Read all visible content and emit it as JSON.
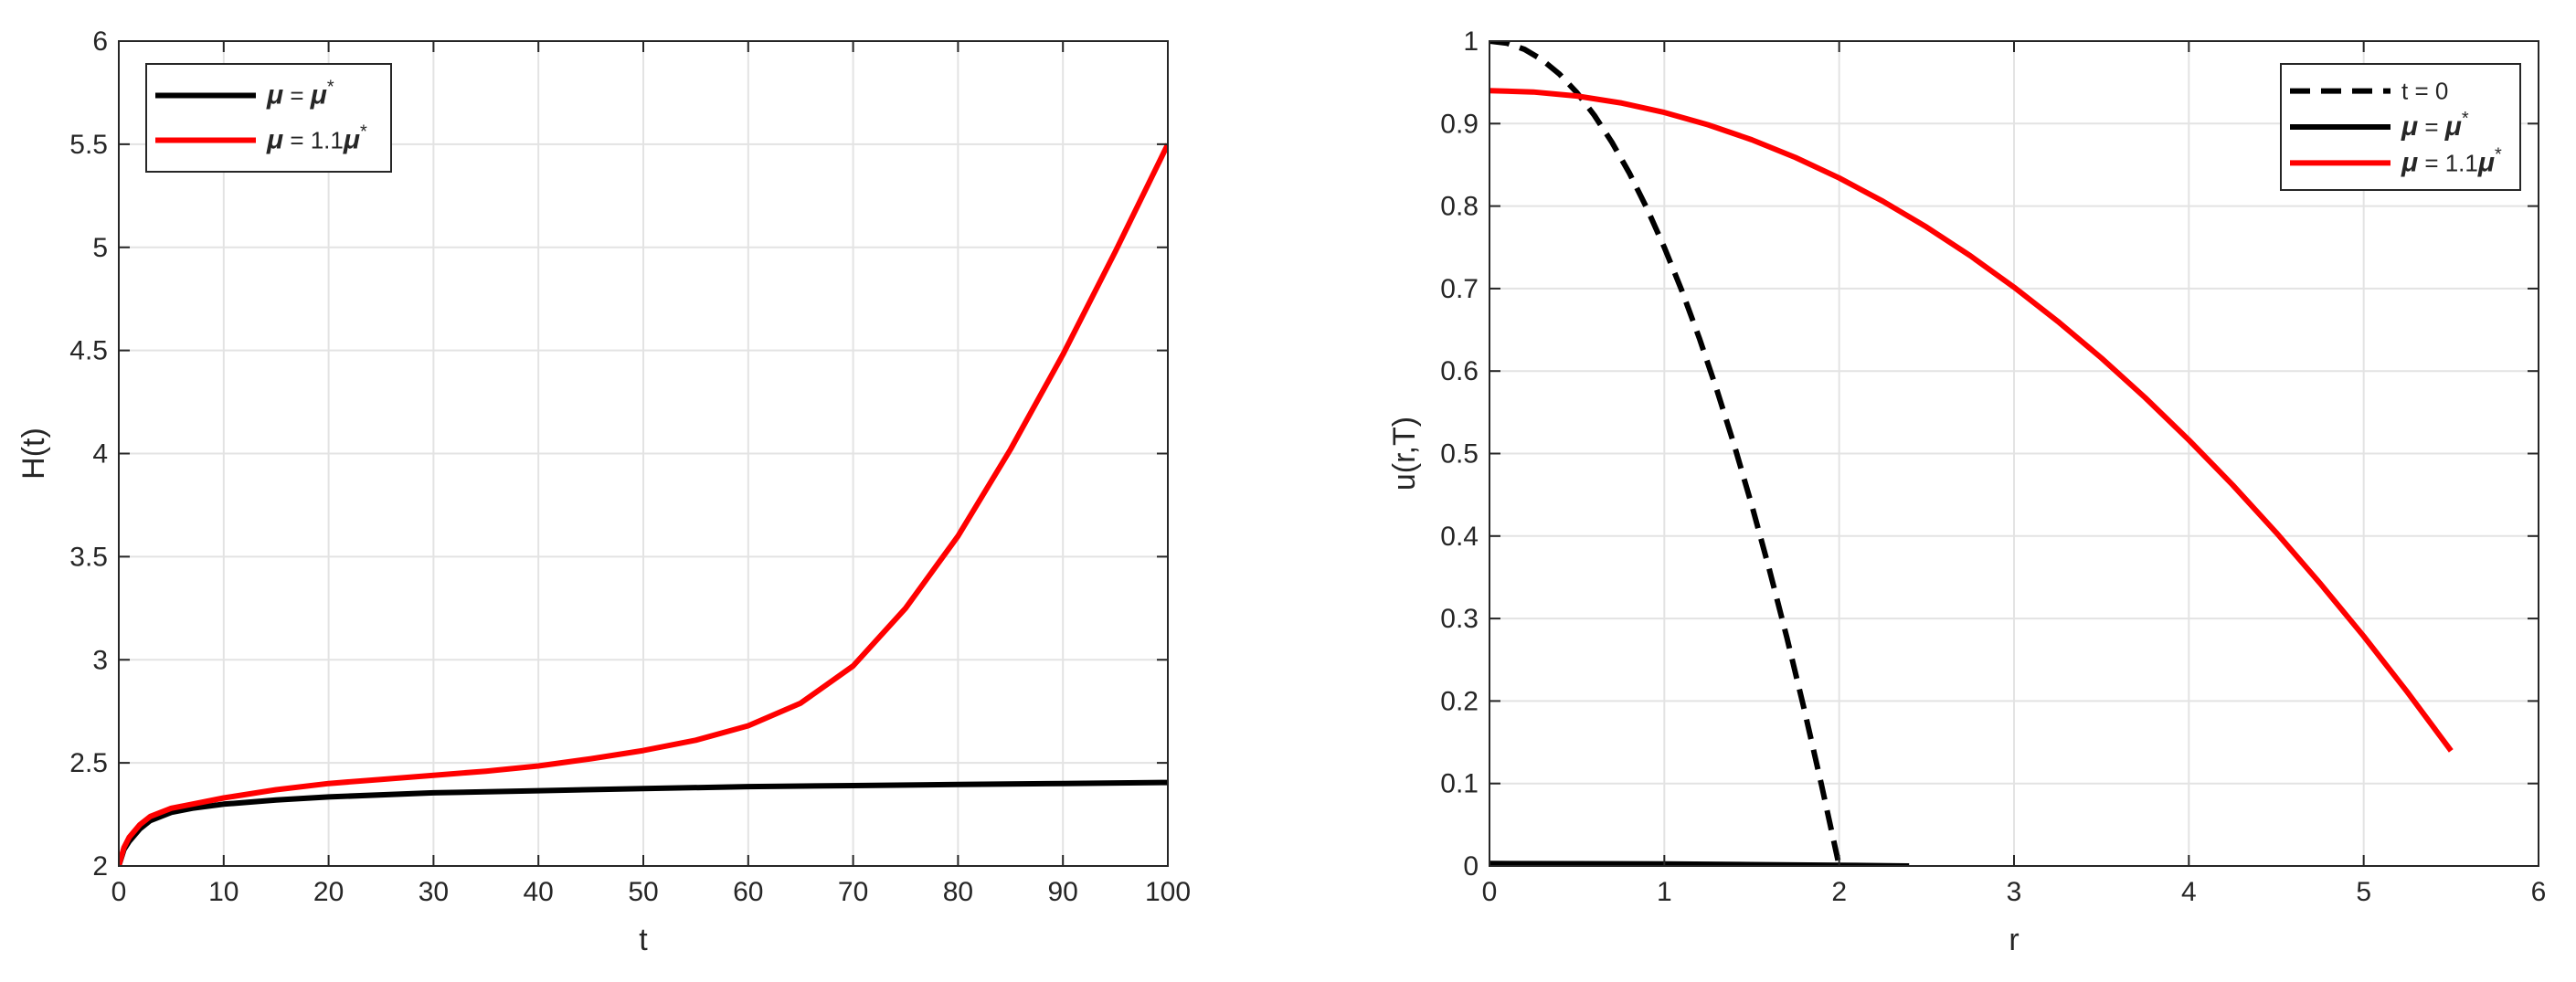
{
  "chart_data": [
    {
      "type": "line",
      "xlabel": "t",
      "ylabel": "H(t)",
      "xlim": [
        0,
        100
      ],
      "ylim": [
        2,
        6
      ],
      "xticks": [
        "0",
        "10",
        "20",
        "30",
        "40",
        "50",
        "60",
        "70",
        "80",
        "90",
        "100"
      ],
      "yticks": [
        "2",
        "2.5",
        "3",
        "3.5",
        "4",
        "4.5",
        "5",
        "5.5",
        "6"
      ],
      "grid": true,
      "legend_position": "top-left",
      "series": [
        {
          "name": "μ = μ*",
          "color": "#000000",
          "dash": "solid",
          "x": [
            0,
            0.5,
            1,
            2,
            3,
            5,
            7,
            10,
            15,
            20,
            30,
            40,
            50,
            60,
            70,
            80,
            90,
            100
          ],
          "y": [
            2.0,
            2.08,
            2.12,
            2.18,
            2.22,
            2.26,
            2.28,
            2.3,
            2.32,
            2.335,
            2.355,
            2.365,
            2.375,
            2.385,
            2.39,
            2.395,
            2.4,
            2.405
          ]
        },
        {
          "name": "μ = 1.1μ*",
          "color": "#ff0000",
          "dash": "solid",
          "x": [
            0,
            0.5,
            1,
            2,
            3,
            5,
            7,
            10,
            15,
            20,
            25,
            30,
            35,
            40,
            45,
            50,
            55,
            60,
            65,
            70,
            75,
            80,
            85,
            90,
            95,
            100
          ],
          "y": [
            2.0,
            2.09,
            2.14,
            2.2,
            2.24,
            2.28,
            2.3,
            2.33,
            2.37,
            2.4,
            2.42,
            2.44,
            2.46,
            2.485,
            2.52,
            2.56,
            2.61,
            2.68,
            2.79,
            2.97,
            3.25,
            3.6,
            4.02,
            4.48,
            4.98,
            5.5
          ]
        }
      ]
    },
    {
      "type": "line",
      "xlabel": "r",
      "ylabel": "u(r,T)",
      "xlim": [
        0,
        6
      ],
      "ylim": [
        0,
        1
      ],
      "xticks": [
        "0",
        "1",
        "2",
        "3",
        "4",
        "5",
        "6"
      ],
      "yticks": [
        "0",
        "0.1",
        "0.2",
        "0.3",
        "0.4",
        "0.5",
        "0.6",
        "0.7",
        "0.8",
        "0.9",
        "1"
      ],
      "grid": true,
      "legend_position": "top-right",
      "series": [
        {
          "name": "t = 0",
          "color": "#000000",
          "dash": "dashed",
          "x": [
            0,
            0.1,
            0.2,
            0.3,
            0.4,
            0.5,
            0.6,
            0.7,
            0.8,
            0.9,
            1.0,
            1.1,
            1.2,
            1.3,
            1.4,
            1.5,
            1.6,
            1.7,
            1.8,
            1.9,
            2.0
          ],
          "y": [
            1.0,
            0.9975,
            0.99,
            0.9775,
            0.96,
            0.9375,
            0.91,
            0.8775,
            0.84,
            0.7975,
            0.75,
            0.6975,
            0.64,
            0.5775,
            0.51,
            0.4375,
            0.36,
            0.2775,
            0.19,
            0.0975,
            0.0
          ]
        },
        {
          "name": "μ = μ*",
          "color": "#000000",
          "dash": "solid",
          "x": [
            0,
            0.5,
            1.0,
            1.5,
            2.0,
            2.4
          ],
          "y": [
            0.003,
            0.0028,
            0.0024,
            0.0017,
            0.0009,
            0.0
          ]
        },
        {
          "name": "μ = 1.1μ*",
          "color": "#ff0000",
          "dash": "solid",
          "x": [
            0,
            0.25,
            0.5,
            0.75,
            1.0,
            1.25,
            1.5,
            1.75,
            2.0,
            2.25,
            2.5,
            2.75,
            3.0,
            3.25,
            3.5,
            3.75,
            4.0,
            4.25,
            4.5,
            4.75,
            5.0,
            5.25,
            5.5
          ],
          "y": [
            0.94,
            0.9383,
            0.9334,
            0.9251,
            0.9135,
            0.8986,
            0.8804,
            0.8589,
            0.8341,
            0.8059,
            0.7745,
            0.7398,
            0.7017,
            0.6604,
            0.6157,
            0.5678,
            0.5165,
            0.462,
            0.4041,
            0.3429,
            0.2785,
            0.2107,
            0.1396
          ]
        }
      ]
    }
  ]
}
